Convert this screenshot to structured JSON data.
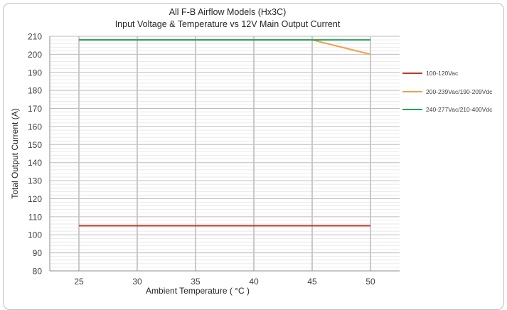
{
  "chart_data": {
    "type": "line",
    "title": "All F-B Airflow Models (Hx3C)",
    "subtitle": "Input Voltage & Temperature vs 12V Main Output Current",
    "xlabel": "Ambient Temperature ( °C )",
    "ylabel": "Total Output Current (A)",
    "xlim": [
      22.5,
      52.5
    ],
    "ylim": [
      80,
      210
    ],
    "x_ticks": [
      25,
      30,
      35,
      40,
      45,
      50
    ],
    "y_ticks": [
      80,
      90,
      100,
      110,
      120,
      130,
      140,
      150,
      160,
      170,
      180,
      190,
      200,
      210
    ],
    "grid": true,
    "legend_position": "right",
    "series": [
      {
        "name": "100-120Vac",
        "color": "#c0392b",
        "x": [
          25,
          50
        ],
        "y": [
          105,
          105
        ]
      },
      {
        "name": "200-239Vac/190-209Vdc",
        "color": "#f0a050",
        "x": [
          25,
          45,
          50
        ],
        "y": [
          208,
          208,
          200
        ]
      },
      {
        "name": "240-277Vac/210-400Vdc",
        "color": "#27a05a",
        "x": [
          25,
          45,
          50
        ],
        "y": [
          208,
          208,
          208
        ]
      }
    ]
  }
}
